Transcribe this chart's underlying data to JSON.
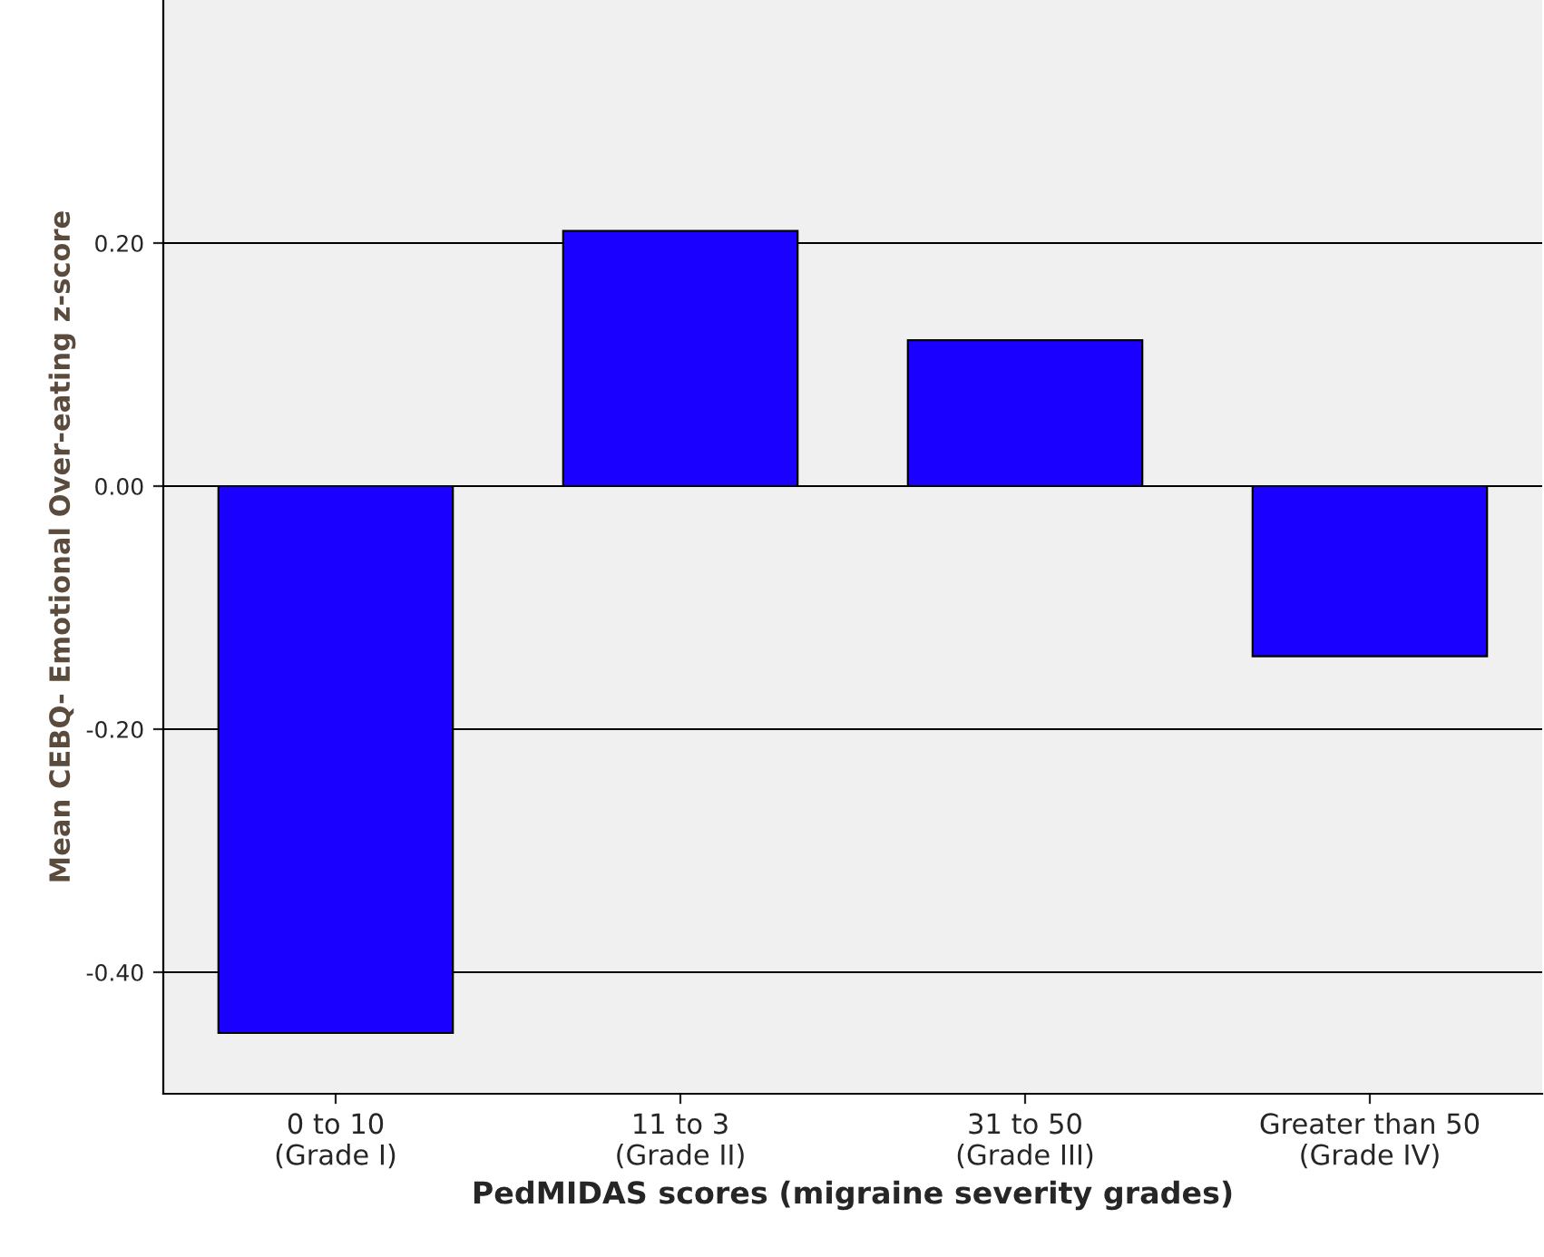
{
  "chart_data": {
    "type": "bar",
    "categories": [
      "0 to 10\n(Grade I)",
      "11 to 3\n(Grade II)",
      "31 to 50\n(Grade III)",
      "Greater than 50\n(Grade IV)"
    ],
    "values": [
      -0.45,
      0.21,
      0.12,
      -0.14
    ],
    "color": "#1a00ff",
    "xlabel": "PedMIDAS scores (migraine severity grades)",
    "ylabel": "Mean CEBQ- Emotional Over-eating z-score",
    "ylim": [
      -0.5,
      0.4
    ],
    "yticks": [
      {
        "value": -0.4,
        "label": "-0.40"
      },
      {
        "value": -0.2,
        "label": "-0.20"
      },
      {
        "value": 0.0,
        "label": "0.00"
      },
      {
        "value": 0.2,
        "label": "0.20"
      }
    ],
    "grid": "y"
  }
}
